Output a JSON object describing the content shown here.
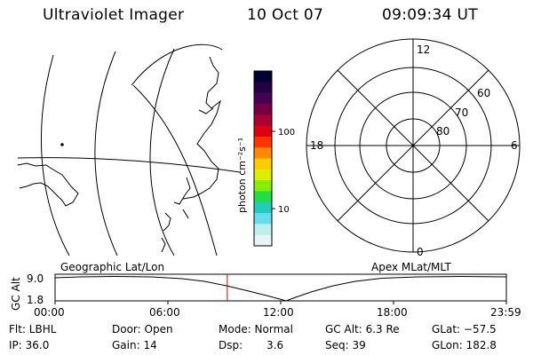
{
  "header": {
    "title": "Ultraviolet Imager",
    "date": "10 Oct 07",
    "time": "09:09:34 UT"
  },
  "colorbar": {
    "unit_label": "photon cm⁻²s⁻¹",
    "ticks": [
      "100",
      "10"
    ],
    "colors": [
      "#000033",
      "#220044",
      "#440055",
      "#770044",
      "#aa0033",
      "#dd0011",
      "#ff3300",
      "#ff8800",
      "#ffcc00",
      "#ddee00",
      "#88ee00",
      "#22dd44",
      "#22ccbb",
      "#66ddee",
      "#bbeeee",
      "#e8f4f4"
    ]
  },
  "polar_plot": {
    "mlt_labels": {
      "top": "12",
      "left": "18",
      "right": "6",
      "bottom": "0"
    },
    "lat_labels": [
      "60",
      "70",
      "80"
    ]
  },
  "timeline": {
    "left_label": "Geographic Lat/Lon",
    "right_label": "Apex MLat/MLT",
    "y_axis_title": "GC Alt",
    "y_ticks": [
      "9.0",
      "1.8"
    ],
    "x_ticks": [
      "00:00",
      "06:00",
      "12:00",
      "18:00",
      "23:59"
    ],
    "marker_time_hours": 9.16
  },
  "footer": {
    "filter": "Flt: LBHL",
    "door": "Door: Open",
    "mode": "Mode: Normal",
    "gc_alt": "GC Alt: 6.3 Re",
    "glat": "GLat: −57.5",
    "ip": "IP: 36.0",
    "gain": "Gain: 14",
    "dsp_label": "Dsp:",
    "dsp_value": "3.6",
    "seq": "Seq: 39",
    "glon": "GLon: 182.8"
  }
}
